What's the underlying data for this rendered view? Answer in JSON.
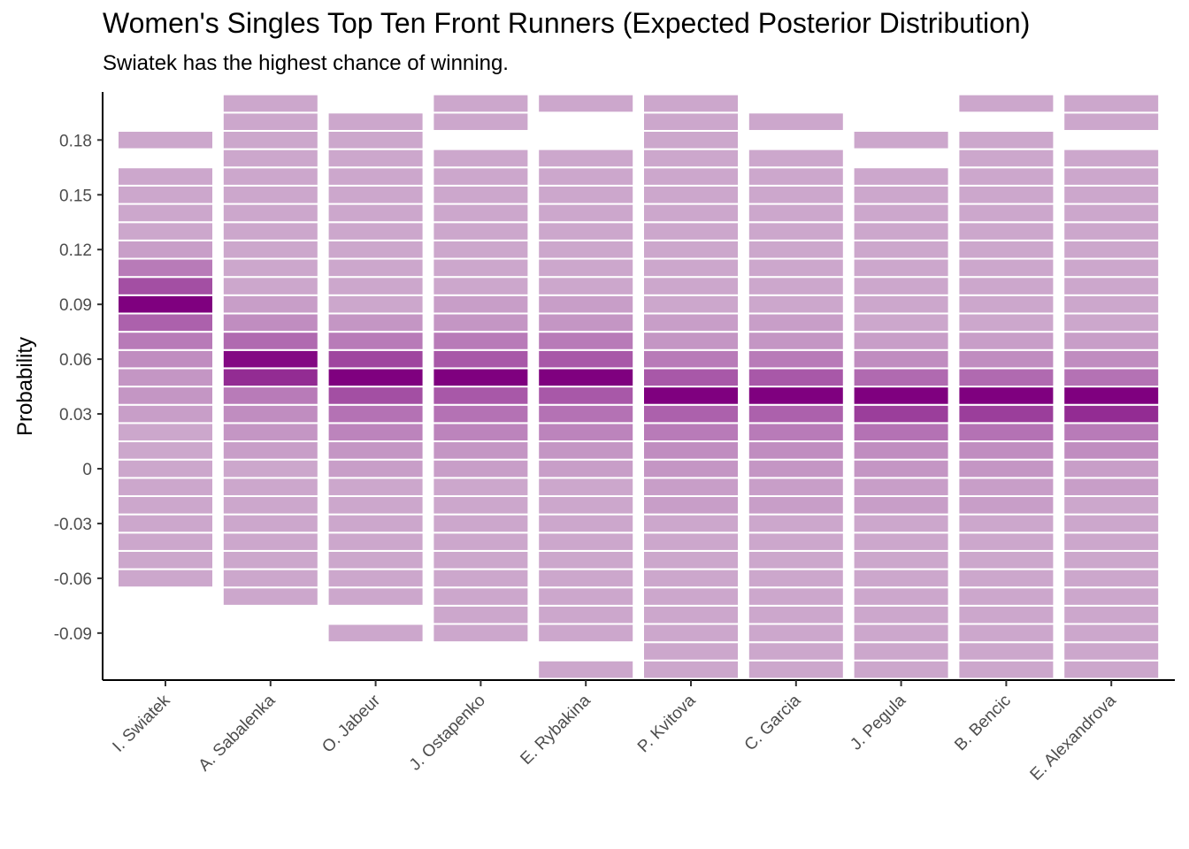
{
  "title": "Women's Singles Top Ten Front Runners (Expected Posterior Distribution)",
  "subtitle": "Swiatek has the highest chance of winning.",
  "chart_data": {
    "type": "heatmap",
    "title": "Women's Singles Top Ten Front Runners (Expected Posterior Distribution)",
    "subtitle": "Swiatek has the highest chance of winning.",
    "xlabel": "",
    "ylabel": "Probability",
    "ylim": [
      -0.115,
      0.205
    ],
    "bin_width": 0.01,
    "yticks": [
      -0.09,
      -0.06,
      -0.03,
      0,
      0.03,
      0.06,
      0.09,
      0.12,
      0.15,
      0.18
    ],
    "ytick_labels": [
      "-0.09",
      "-0.06",
      "-0.03",
      "0",
      "0.03",
      "0.06",
      "0.09",
      "0.12",
      "0.15",
      "0.18"
    ],
    "grid": false,
    "legend": "none",
    "colors": {
      "low": "#d0b0d0",
      "high": "#7f007f",
      "outline": "#ffffff"
    },
    "categories": [
      "I. Swiatek",
      "A. Sabalenka",
      "O. Jabeur",
      "J. Ostapenko",
      "E. Rybakina",
      "P. Kvitova",
      "C. Garcia",
      "J. Pegula",
      "B. Bencic",
      "E. Alexandrova"
    ],
    "series": [
      {
        "player": "I. Swiatek",
        "bins": [
          [
            -0.06,
            0.05
          ],
          [
            -0.05,
            0.05
          ],
          [
            -0.04,
            0.05
          ],
          [
            -0.03,
            0.05
          ],
          [
            -0.02,
            0.05
          ],
          [
            -0.01,
            0.05
          ],
          [
            0,
            0.05
          ],
          [
            0.01,
            0.05
          ],
          [
            0.02,
            0.05
          ],
          [
            0.03,
            0.1
          ],
          [
            0.04,
            0.15
          ],
          [
            0.05,
            0.15
          ],
          [
            0.06,
            0.2
          ],
          [
            0.07,
            0.3
          ],
          [
            0.08,
            0.45
          ],
          [
            0.09,
            1.0
          ],
          [
            0.1,
            0.55
          ],
          [
            0.11,
            0.3
          ],
          [
            0.12,
            0.1
          ],
          [
            0.13,
            0.05
          ],
          [
            0.14,
            0.05
          ],
          [
            0.15,
            0.05
          ],
          [
            0.16,
            0.05
          ],
          [
            0.18,
            0.05
          ]
        ]
      },
      {
        "player": "A. Sabalenka",
        "bins": [
          [
            -0.07,
            0.05
          ],
          [
            -0.06,
            0.05
          ],
          [
            -0.05,
            0.05
          ],
          [
            -0.04,
            0.05
          ],
          [
            -0.03,
            0.05
          ],
          [
            -0.02,
            0.05
          ],
          [
            -0.01,
            0.05
          ],
          [
            0,
            0.05
          ],
          [
            0.01,
            0.1
          ],
          [
            0.02,
            0.15
          ],
          [
            0.03,
            0.2
          ],
          [
            0.04,
            0.3
          ],
          [
            0.05,
            0.75
          ],
          [
            0.06,
            0.95
          ],
          [
            0.07,
            0.4
          ],
          [
            0.08,
            0.2
          ],
          [
            0.09,
            0.1
          ],
          [
            0.1,
            0.05
          ],
          [
            0.11,
            0.05
          ],
          [
            0.12,
            0.05
          ],
          [
            0.13,
            0.05
          ],
          [
            0.14,
            0.05
          ],
          [
            0.15,
            0.05
          ],
          [
            0.16,
            0.05
          ],
          [
            0.17,
            0.05
          ],
          [
            0.18,
            0.05
          ],
          [
            0.19,
            0.05
          ],
          [
            0.2,
            0.05
          ]
        ]
      },
      {
        "player": "O. Jabeur",
        "bins": [
          [
            -0.09,
            0.05
          ],
          [
            -0.07,
            0.05
          ],
          [
            -0.06,
            0.05
          ],
          [
            -0.05,
            0.05
          ],
          [
            -0.04,
            0.05
          ],
          [
            -0.03,
            0.05
          ],
          [
            -0.02,
            0.05
          ],
          [
            -0.01,
            0.05
          ],
          [
            0,
            0.1
          ],
          [
            0.01,
            0.15
          ],
          [
            0.02,
            0.25
          ],
          [
            0.03,
            0.35
          ],
          [
            0.04,
            0.55
          ],
          [
            0.05,
            1.0
          ],
          [
            0.06,
            0.6
          ],
          [
            0.07,
            0.3
          ],
          [
            0.08,
            0.15
          ],
          [
            0.09,
            0.05
          ],
          [
            0.1,
            0.05
          ],
          [
            0.11,
            0.05
          ],
          [
            0.12,
            0.05
          ],
          [
            0.13,
            0.05
          ],
          [
            0.14,
            0.05
          ],
          [
            0.15,
            0.05
          ],
          [
            0.16,
            0.05
          ],
          [
            0.17,
            0.05
          ],
          [
            0.18,
            0.05
          ],
          [
            0.19,
            0.05
          ]
        ]
      },
      {
        "player": "J. Ostapenko",
        "bins": [
          [
            -0.09,
            0.05
          ],
          [
            -0.08,
            0.05
          ],
          [
            -0.07,
            0.05
          ],
          [
            -0.06,
            0.05
          ],
          [
            -0.05,
            0.05
          ],
          [
            -0.04,
            0.05
          ],
          [
            -0.03,
            0.05
          ],
          [
            -0.02,
            0.05
          ],
          [
            -0.01,
            0.05
          ],
          [
            0,
            0.1
          ],
          [
            0.01,
            0.15
          ],
          [
            0.02,
            0.25
          ],
          [
            0.03,
            0.35
          ],
          [
            0.04,
            0.5
          ],
          [
            0.05,
            1.0
          ],
          [
            0.06,
            0.5
          ],
          [
            0.07,
            0.3
          ],
          [
            0.08,
            0.15
          ],
          [
            0.09,
            0.1
          ],
          [
            0.1,
            0.05
          ],
          [
            0.11,
            0.05
          ],
          [
            0.12,
            0.05
          ],
          [
            0.13,
            0.05
          ],
          [
            0.14,
            0.05
          ],
          [
            0.15,
            0.05
          ],
          [
            0.16,
            0.05
          ],
          [
            0.17,
            0.05
          ],
          [
            0.19,
            0.05
          ],
          [
            0.2,
            0.05
          ]
        ]
      },
      {
        "player": "E. Rybakina",
        "bins": [
          [
            -0.11,
            0.05
          ],
          [
            -0.09,
            0.05
          ],
          [
            -0.08,
            0.05
          ],
          [
            -0.07,
            0.05
          ],
          [
            -0.06,
            0.05
          ],
          [
            -0.05,
            0.05
          ],
          [
            -0.04,
            0.05
          ],
          [
            -0.03,
            0.05
          ],
          [
            -0.02,
            0.05
          ],
          [
            -0.01,
            0.05
          ],
          [
            0,
            0.1
          ],
          [
            0.01,
            0.15
          ],
          [
            0.02,
            0.25
          ],
          [
            0.03,
            0.35
          ],
          [
            0.04,
            0.5
          ],
          [
            0.05,
            1.0
          ],
          [
            0.06,
            0.5
          ],
          [
            0.07,
            0.3
          ],
          [
            0.08,
            0.15
          ],
          [
            0.09,
            0.1
          ],
          [
            0.1,
            0.05
          ],
          [
            0.11,
            0.05
          ],
          [
            0.12,
            0.05
          ],
          [
            0.13,
            0.05
          ],
          [
            0.14,
            0.05
          ],
          [
            0.15,
            0.05
          ],
          [
            0.16,
            0.05
          ],
          [
            0.17,
            0.05
          ],
          [
            0.2,
            0.05
          ]
        ]
      },
      {
        "player": "P. Kvitova",
        "bins": [
          [
            -0.11,
            0.05
          ],
          [
            -0.1,
            0.05
          ],
          [
            -0.09,
            0.05
          ],
          [
            -0.08,
            0.05
          ],
          [
            -0.07,
            0.05
          ],
          [
            -0.06,
            0.05
          ],
          [
            -0.05,
            0.05
          ],
          [
            -0.04,
            0.05
          ],
          [
            -0.03,
            0.05
          ],
          [
            -0.02,
            0.1
          ],
          [
            -0.01,
            0.1
          ],
          [
            0,
            0.15
          ],
          [
            0.01,
            0.2
          ],
          [
            0.02,
            0.3
          ],
          [
            0.03,
            0.45
          ],
          [
            0.04,
            1.0
          ],
          [
            0.05,
            0.5
          ],
          [
            0.06,
            0.3
          ],
          [
            0.07,
            0.15
          ],
          [
            0.08,
            0.1
          ],
          [
            0.09,
            0.05
          ],
          [
            0.1,
            0.05
          ],
          [
            0.11,
            0.05
          ],
          [
            0.12,
            0.05
          ],
          [
            0.13,
            0.05
          ],
          [
            0.14,
            0.05
          ],
          [
            0.15,
            0.05
          ],
          [
            0.16,
            0.05
          ],
          [
            0.17,
            0.05
          ],
          [
            0.18,
            0.05
          ],
          [
            0.19,
            0.05
          ],
          [
            0.2,
            0.05
          ]
        ]
      },
      {
        "player": "C. Garcia",
        "bins": [
          [
            -0.11,
            0.05
          ],
          [
            -0.1,
            0.05
          ],
          [
            -0.09,
            0.05
          ],
          [
            -0.08,
            0.05
          ],
          [
            -0.07,
            0.05
          ],
          [
            -0.06,
            0.05
          ],
          [
            -0.05,
            0.05
          ],
          [
            -0.04,
            0.05
          ],
          [
            -0.03,
            0.05
          ],
          [
            -0.02,
            0.1
          ],
          [
            -0.01,
            0.1
          ],
          [
            0,
            0.15
          ],
          [
            0.01,
            0.2
          ],
          [
            0.02,
            0.3
          ],
          [
            0.03,
            0.45
          ],
          [
            0.04,
            1.0
          ],
          [
            0.05,
            0.5
          ],
          [
            0.06,
            0.3
          ],
          [
            0.07,
            0.15
          ],
          [
            0.08,
            0.1
          ],
          [
            0.09,
            0.05
          ],
          [
            0.1,
            0.05
          ],
          [
            0.11,
            0.05
          ],
          [
            0.12,
            0.05
          ],
          [
            0.13,
            0.05
          ],
          [
            0.14,
            0.05
          ],
          [
            0.15,
            0.05
          ],
          [
            0.16,
            0.05
          ],
          [
            0.17,
            0.05
          ],
          [
            0.19,
            0.05
          ]
        ]
      },
      {
        "player": "J. Pegula",
        "bins": [
          [
            -0.11,
            0.05
          ],
          [
            -0.1,
            0.05
          ],
          [
            -0.09,
            0.05
          ],
          [
            -0.08,
            0.05
          ],
          [
            -0.07,
            0.05
          ],
          [
            -0.06,
            0.05
          ],
          [
            -0.05,
            0.05
          ],
          [
            -0.04,
            0.05
          ],
          [
            -0.03,
            0.05
          ],
          [
            -0.02,
            0.1
          ],
          [
            -0.01,
            0.1
          ],
          [
            0,
            0.15
          ],
          [
            0.01,
            0.2
          ],
          [
            0.02,
            0.35
          ],
          [
            0.03,
            0.65
          ],
          [
            0.04,
            1.0
          ],
          [
            0.05,
            0.4
          ],
          [
            0.06,
            0.2
          ],
          [
            0.07,
            0.1
          ],
          [
            0.08,
            0.05
          ],
          [
            0.09,
            0.05
          ],
          [
            0.1,
            0.05
          ],
          [
            0.11,
            0.05
          ],
          [
            0.12,
            0.05
          ],
          [
            0.13,
            0.05
          ],
          [
            0.14,
            0.05
          ],
          [
            0.15,
            0.05
          ],
          [
            0.16,
            0.05
          ],
          [
            0.18,
            0.05
          ]
        ]
      },
      {
        "player": "B. Bencic",
        "bins": [
          [
            -0.11,
            0.05
          ],
          [
            -0.1,
            0.05
          ],
          [
            -0.09,
            0.05
          ],
          [
            -0.08,
            0.05
          ],
          [
            -0.07,
            0.05
          ],
          [
            -0.06,
            0.05
          ],
          [
            -0.05,
            0.05
          ],
          [
            -0.04,
            0.05
          ],
          [
            -0.03,
            0.05
          ],
          [
            -0.02,
            0.1
          ],
          [
            -0.01,
            0.1
          ],
          [
            0,
            0.15
          ],
          [
            0.01,
            0.2
          ],
          [
            0.02,
            0.35
          ],
          [
            0.03,
            0.65
          ],
          [
            0.04,
            1.0
          ],
          [
            0.05,
            0.4
          ],
          [
            0.06,
            0.2
          ],
          [
            0.07,
            0.1
          ],
          [
            0.08,
            0.05
          ],
          [
            0.09,
            0.05
          ],
          [
            0.1,
            0.05
          ],
          [
            0.11,
            0.05
          ],
          [
            0.12,
            0.05
          ],
          [
            0.13,
            0.05
          ],
          [
            0.14,
            0.05
          ],
          [
            0.15,
            0.05
          ],
          [
            0.16,
            0.05
          ],
          [
            0.17,
            0.05
          ],
          [
            0.18,
            0.05
          ],
          [
            0.2,
            0.05
          ]
        ]
      },
      {
        "player": "E. Alexandrova",
        "bins": [
          [
            -0.11,
            0.05
          ],
          [
            -0.1,
            0.05
          ],
          [
            -0.09,
            0.05
          ],
          [
            -0.08,
            0.05
          ],
          [
            -0.07,
            0.05
          ],
          [
            -0.06,
            0.05
          ],
          [
            -0.05,
            0.05
          ],
          [
            -0.04,
            0.05
          ],
          [
            -0.03,
            0.05
          ],
          [
            -0.02,
            0.05
          ],
          [
            -0.01,
            0.1
          ],
          [
            0,
            0.1
          ],
          [
            0.01,
            0.2
          ],
          [
            0.02,
            0.3
          ],
          [
            0.03,
            0.75
          ],
          [
            0.04,
            1.0
          ],
          [
            0.05,
            0.35
          ],
          [
            0.06,
            0.2
          ],
          [
            0.07,
            0.1
          ],
          [
            0.08,
            0.05
          ],
          [
            0.09,
            0.05
          ],
          [
            0.1,
            0.05
          ],
          [
            0.11,
            0.05
          ],
          [
            0.12,
            0.05
          ],
          [
            0.13,
            0.05
          ],
          [
            0.14,
            0.05
          ],
          [
            0.15,
            0.05
          ],
          [
            0.16,
            0.05
          ],
          [
            0.17,
            0.05
          ],
          [
            0.19,
            0.05
          ],
          [
            0.2,
            0.05
          ]
        ]
      }
    ]
  }
}
